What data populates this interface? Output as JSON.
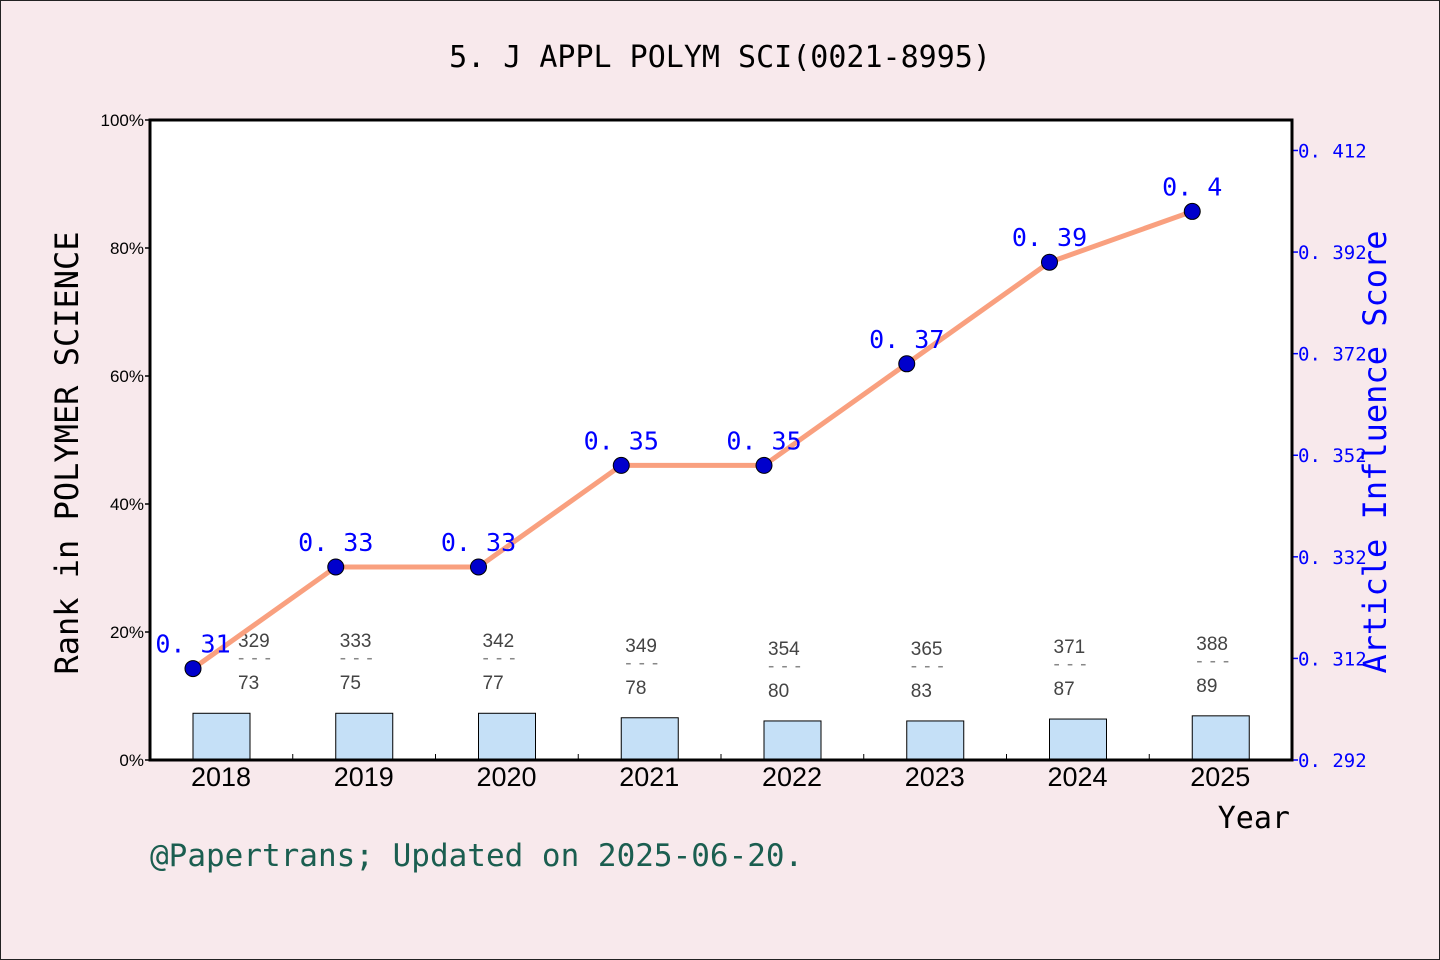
{
  "chart_data": {
    "type": "bar+line",
    "title": "5. J APPL POLYM SCI(0021-8995)",
    "xlabel": "Year",
    "ylabel_left": "Rank in POLYMER SCIENCE",
    "ylabel_right": "Article Influence Score",
    "categories": [
      "2018",
      "2019",
      "2020",
      "2021",
      "2022",
      "2023",
      "2024",
      "2025"
    ],
    "left_axis": {
      "ylim": [
        0,
        100
      ],
      "ticks": [
        "0%",
        "20%",
        "40%",
        "60%",
        "80%",
        "100%"
      ]
    },
    "right_axis": {
      "ylim": [
        0.292,
        0.418
      ],
      "ticks": [
        "0. 292",
        "0. 312",
        "0. 332",
        "0. 352",
        "0. 372",
        "0. 392",
        "0. 412"
      ],
      "tick_values": [
        0.292,
        0.312,
        0.332,
        0.352,
        0.372,
        0.392,
        0.412
      ]
    },
    "bars": {
      "values_percent": [
        7.3,
        7.3,
        7.3,
        6.6,
        6.1,
        6.1,
        6.4,
        6.9
      ],
      "color": "#c5e0f7"
    },
    "rank_labels": [
      {
        "total": "329",
        "rank": "73"
      },
      {
        "total": "333",
        "rank": "75"
      },
      {
        "total": "342",
        "rank": "77"
      },
      {
        "total": "349",
        "rank": "78"
      },
      {
        "total": "354",
        "rank": "80"
      },
      {
        "total": "365",
        "rank": "83"
      },
      {
        "total": "371",
        "rank": "87"
      },
      {
        "total": "388",
        "rank": "89"
      }
    ],
    "separator": "---",
    "line": {
      "values": [
        0.31,
        0.33,
        0.33,
        0.35,
        0.35,
        0.37,
        0.39,
        0.4
      ],
      "labels": [
        "0. 31",
        "0. 33",
        "0. 33",
        "0. 35",
        "0. 35",
        "0. 37",
        "0. 39",
        "0. 4"
      ],
      "line_color": "#f9a07f",
      "marker_color": "#0000cc"
    },
    "grid": false,
    "footer": "@Papertrans; Updated on 2025-06-20."
  }
}
